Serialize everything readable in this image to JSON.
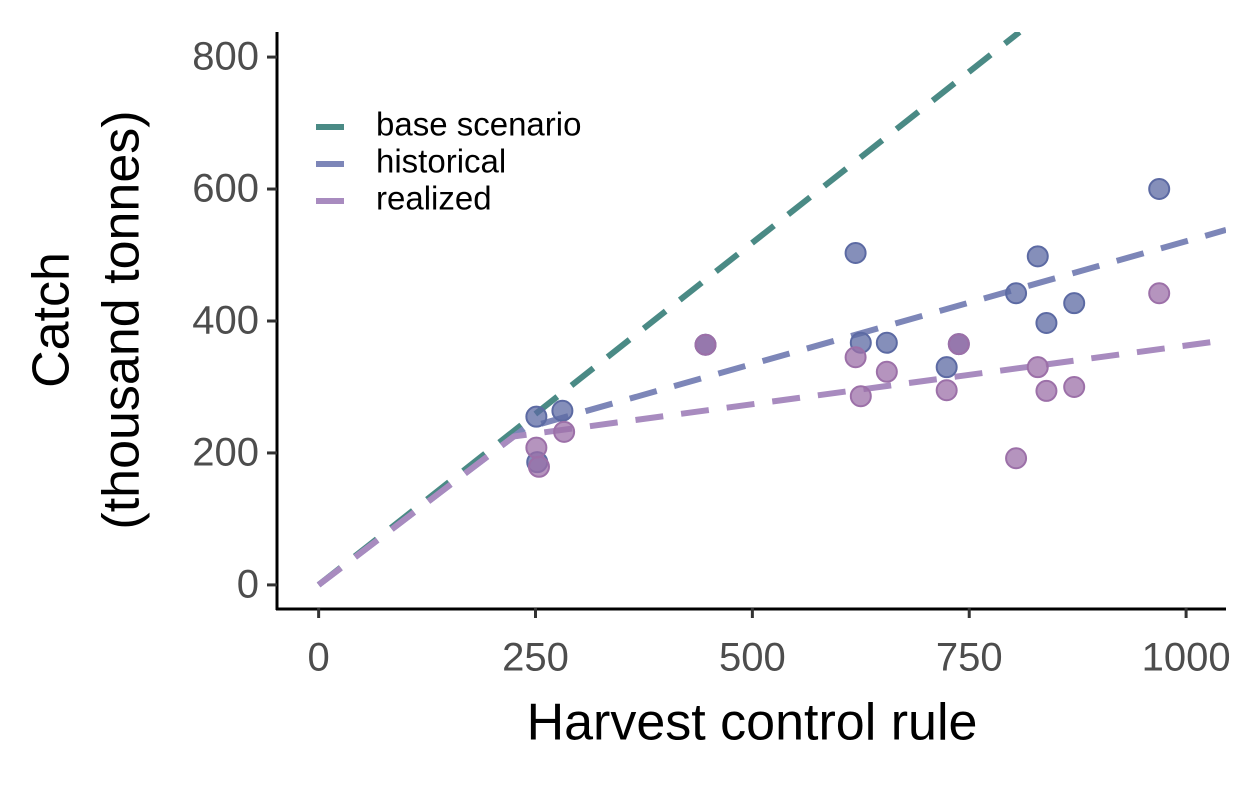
{
  "chart_data": {
    "type": "scatter",
    "x_label": "Harvest control rule",
    "y_label": [
      "Catch",
      "(thousand tonnes)"
    ],
    "xlim": [
      -48,
      1046
    ],
    "xticks": [
      0,
      250,
      500,
      750,
      1000
    ],
    "ylim": [
      -35,
      838
    ],
    "yticks": [
      0,
      200,
      400,
      600,
      800
    ],
    "legend": "top-left",
    "lines": [
      {
        "name": "base scenario",
        "color": "#4a8a85",
        "x": [
          0,
          808
        ],
        "values": [
          0,
          838
        ]
      },
      {
        "name": "historical",
        "color": "#7d86b8",
        "x": [
          0,
          237,
          1046
        ],
        "values": [
          0,
          237,
          538
        ]
      },
      {
        "name": "realized",
        "color": "#a88bbf",
        "x": [
          0,
          225,
          1046
        ],
        "values": [
          0,
          225,
          371
        ]
      }
    ],
    "points": [
      {
        "color": "#5c6aa3",
        "x": [
          251,
          252,
          281,
          446,
          619,
          625,
          655,
          724,
          738,
          804,
          829,
          839,
          871,
          969
        ],
        "values": [
          255,
          186,
          264,
          364,
          503,
          367,
          367,
          330,
          365,
          442,
          498,
          397,
          427,
          600
        ]
      },
      {
        "color": "#9c70a8",
        "x": [
          251,
          254,
          283,
          446,
          619,
          625,
          655,
          724,
          738,
          804,
          829,
          839,
          871,
          969
        ],
        "values": [
          208,
          179,
          232,
          364,
          345,
          286,
          323,
          295,
          365,
          192,
          330,
          294,
          300,
          442
        ]
      }
    ]
  }
}
